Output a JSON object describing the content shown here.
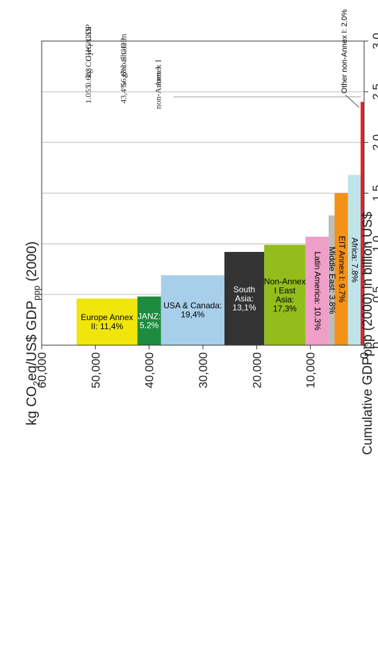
{
  "chart_data": {
    "type": "bar",
    "title_main": "kg CO",
    "title_sub2": "2",
    "title_mid": "eq/US$ GDP",
    "title_subppp": "ppp",
    "title_tail": " (2000)",
    "ylabel_text": "Cumulative GDPppp (2000) in billion US$",
    "value_axis": {
      "range": [
        0,
        3.0
      ],
      "ticks": [
        "0",
        "0.5",
        "1.0",
        "1.5",
        "2.0",
        "2.5",
        "3.0"
      ],
      "tick_values": [
        0,
        0.5,
        1.0,
        1.5,
        2.0,
        2.5,
        3.0
      ],
      "grid": true
    },
    "cumulative_axis": {
      "range": [
        0,
        60000
      ],
      "ticks": [
        "0",
        "10,000",
        "20,000",
        "30,000",
        "40,000",
        "50,000",
        "60,000"
      ],
      "tick_values": [
        0,
        10000,
        20000,
        30000,
        40000,
        50000,
        60000
      ]
    },
    "bars": [
      {
        "label": "Other non-Annex I: 2.0%",
        "start": 0,
        "end": 650,
        "value": 2.4,
        "color": "#e0262a",
        "text_color": "#000000",
        "label_rotation": "outside"
      },
      {
        "label": "Africa: 7.8%",
        "start": 650,
        "end": 3000,
        "value": 1.68,
        "color": "#bfe3ea",
        "text_color": "#000000",
        "label_rotation": "up"
      },
      {
        "label": "EIT Annex I: 9.7%",
        "start": 3000,
        "end": 5500,
        "value": 1.5,
        "color": "#f39217",
        "text_color": "#000000",
        "label_rotation": "up"
      },
      {
        "label": "Middle East: 3.8%",
        "start": 5500,
        "end": 6600,
        "value": 1.28,
        "color": "#bdbdbd",
        "text_color": "#000000",
        "label_rotation": "up"
      },
      {
        "label": "Latin America: 10.3%",
        "start": 6600,
        "end": 10900,
        "value": 1.07,
        "color": "#ef9fc8",
        "text_color": "#000000",
        "label_rotation": "up"
      },
      {
        "label": "Non-Annex I East Asia: 17,3%",
        "start": 10900,
        "end": 18600,
        "value": 0.99,
        "color": "#93bd1a",
        "text_color": "#000000",
        "label_rotation": "down"
      },
      {
        "label": "South Asia: 13,1%",
        "start": 18600,
        "end": 26000,
        "value": 0.92,
        "color": "#333333",
        "text_color": "#ffffff",
        "label_rotation": "down"
      },
      {
        "label": "USA & Canada: 19,4%",
        "start": 26000,
        "end": 37800,
        "value": 0.69,
        "color": "#a7cfe9",
        "text_color": "#000000",
        "label_rotation": "down"
      },
      {
        "label": "JANZ: 5.2%",
        "start": 37800,
        "end": 42200,
        "value": 0.48,
        "color": "#1e8c3f",
        "text_color": "#ffffff",
        "label_rotation": "down"
      },
      {
        "label": "Europe Annex II: 11,4%",
        "start": 42200,
        "end": 53500,
        "value": 0.46,
        "color": "#f0e60c",
        "text_color": "#000000",
        "label_rotation": "down"
      }
    ],
    "reference_lines": [
      {
        "name": "Annex I",
        "value": 0.683
      },
      {
        "name": "non-Annex I",
        "value": 1.055
      }
    ],
    "annotation_table": {
      "col1": [
        "Annex I",
        "non-Annex I"
      ],
      "col2_header": [
        "Share in",
        "global GDP"
      ],
      "col2": [
        "56,6%",
        "43,4%"
      ],
      "col3_header": [
        "GHG/GDP",
        "kg CO",
        "eq/US$"
      ],
      "col3": [
        "0.683",
        "1.055"
      ]
    },
    "colors": {
      "axis": "#333333",
      "grid": "#bdbdbd",
      "text": "#222222"
    }
  }
}
